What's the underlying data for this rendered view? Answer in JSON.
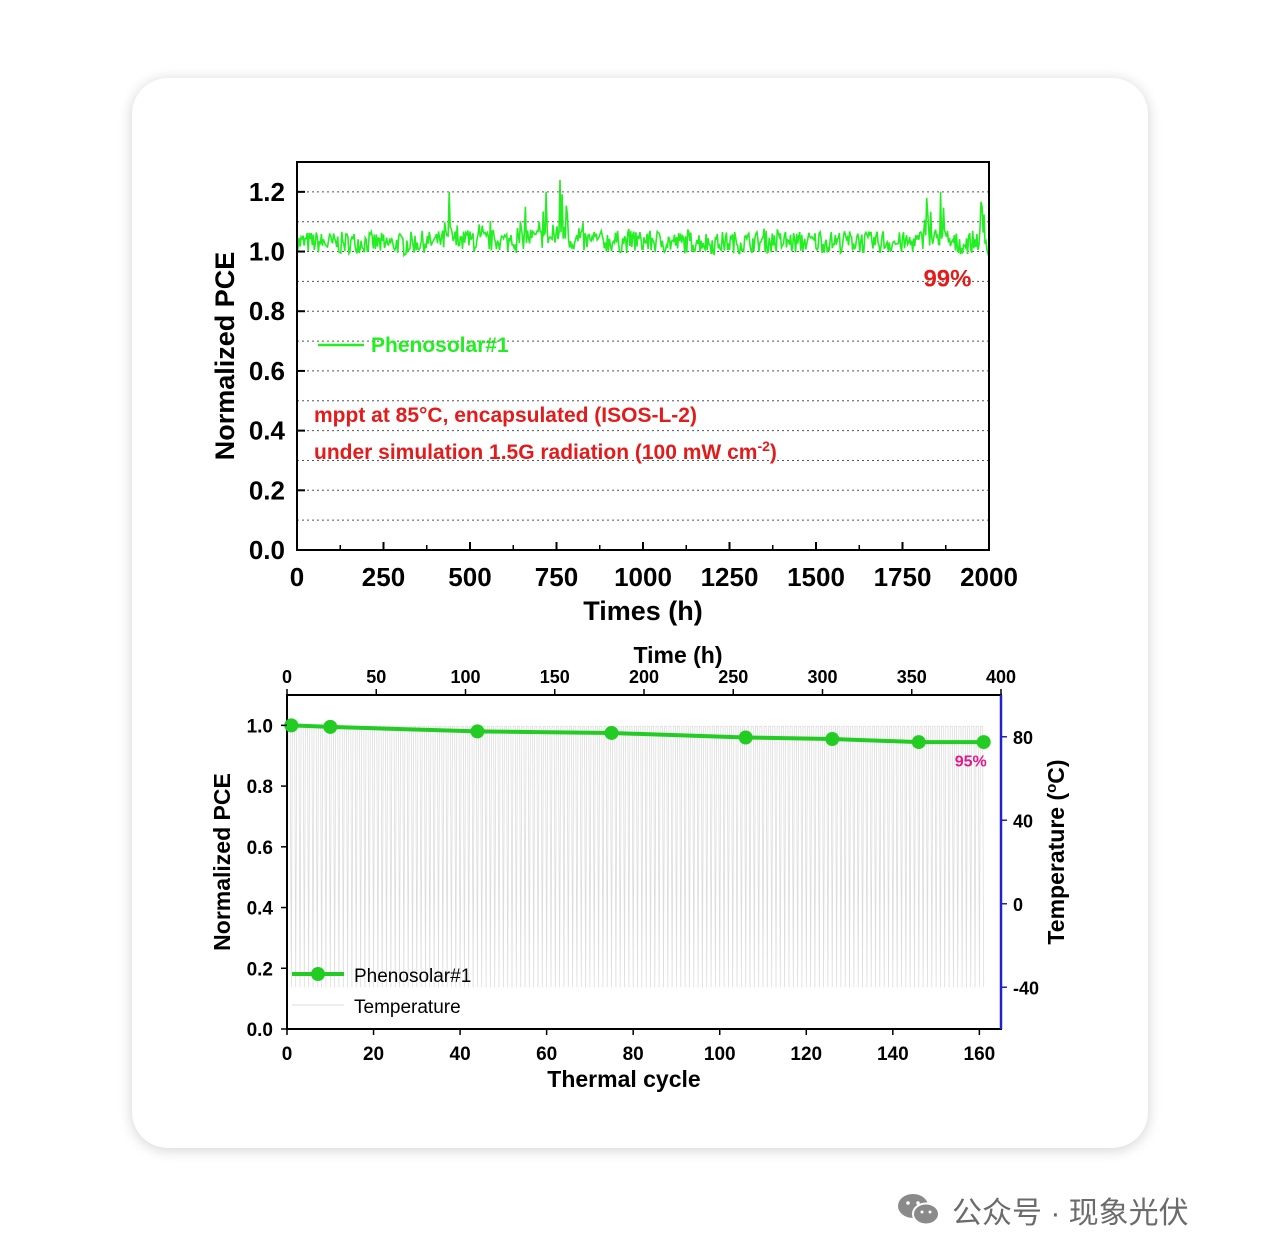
{
  "chart_data": [
    {
      "type": "line",
      "xlabel": "Times (h)",
      "ylabel": "Normalized PCE",
      "xlim": [
        0,
        2000
      ],
      "ylim": [
        0,
        1.3
      ],
      "xticks": [
        0,
        250,
        500,
        750,
        1000,
        1250,
        1500,
        1750,
        2000
      ],
      "yticks": [
        0.0,
        0.2,
        0.4,
        0.6,
        0.8,
        1.0,
        1.2
      ],
      "ytick_labels": [
        "0.0",
        "0.2",
        "0.4",
        "0.6",
        "0.8",
        "1.0",
        "1.2"
      ],
      "grid": "dotted horizontal lines every 0.1",
      "legend_placement": "middle-left",
      "series": [
        {
          "name": "Phenosolar#1",
          "color": "#22ee22",
          "x": [
            0,
            50,
            100,
            150,
            200,
            250,
            300,
            350,
            400,
            430,
            440,
            460,
            500,
            550,
            600,
            640,
            660,
            700,
            720,
            740,
            760,
            800,
            850,
            900,
            950,
            1000,
            1050,
            1100,
            1150,
            1200,
            1250,
            1300,
            1350,
            1400,
            1450,
            1500,
            1550,
            1600,
            1650,
            1700,
            1750,
            1800,
            1820,
            1840,
            1860,
            1880,
            1900,
            1950,
            1980,
            2000
          ],
          "y": [
            1.02,
            1.04,
            1.01,
            1.03,
            1.04,
            1.0,
            1.02,
            1.03,
            1.04,
            1.08,
            1.2,
            1.06,
            1.05,
            1.07,
            1.06,
            1.05,
            1.15,
            1.1,
            1.2,
            1.09,
            1.24,
            1.07,
            1.05,
            1.06,
            1.04,
            1.05,
            1.04,
            1.03,
            1.05,
            1.02,
            1.04,
            1.03,
            1.05,
            1.04,
            1.03,
            1.05,
            1.04,
            1.06,
            1.03,
            1.04,
            1.02,
            1.05,
            1.18,
            1.08,
            1.2,
            1.04,
            1.0,
            1.03,
            1.15,
            1.0
          ]
        }
      ],
      "annotations": [
        {
          "text": "99%",
          "color": "#e31b1b",
          "x": 1880,
          "y": 0.91
        }
      ],
      "notes": {
        "line1": "mppt at 85°C, encapsulated (ISOS-L-2)",
        "line2_main": "under simulation 1.5G radiation (100 mW cm",
        "line2_sup": "-2",
        "line2_end": ")",
        "color": "#e31b1b"
      }
    },
    {
      "type": "line",
      "xlabel": "Thermal cycle",
      "ylabel": "Normalized PCE",
      "x2label": "Time (h)",
      "y2label": "Temperature (°C)",
      "y2label_main": "Temperature (",
      "y2label_sup": "o",
      "y2label_end": "C)",
      "xlim": [
        0,
        165
      ],
      "ylim": [
        0,
        1.1
      ],
      "x2lim": [
        0,
        400
      ],
      "y2lim": [
        -60,
        100
      ],
      "xticks": [
        0,
        20,
        40,
        60,
        80,
        100,
        120,
        140,
        160
      ],
      "yticks": [
        0.0,
        0.2,
        0.4,
        0.6,
        0.8,
        1.0
      ],
      "ytick_labels": [
        "0.0",
        "0.2",
        "0.4",
        "0.6",
        "0.8",
        "1.0"
      ],
      "x2ticks": [
        0,
        50,
        100,
        150,
        200,
        250,
        300,
        350,
        400
      ],
      "y2ticks": [
        -40,
        0,
        40,
        80
      ],
      "y2_axis_color": "#2222cc",
      "legend_placement": "bottom-left",
      "series": [
        {
          "name": "Phenosolar#1",
          "color": "#22cc22",
          "x": [
            1,
            10,
            44,
            75,
            106,
            126,
            146,
            161
          ],
          "y": [
            1.0,
            0.995,
            0.98,
            0.975,
            0.96,
            0.955,
            0.945,
            0.945
          ]
        },
        {
          "name": "Temperature",
          "color": "#dddddd",
          "cycles": 161,
          "range_c": [
            -40,
            85
          ]
        }
      ],
      "annotations": [
        {
          "text": "95%",
          "color": "#e0198c",
          "x": 158,
          "y": 0.885
        }
      ]
    }
  ],
  "footer": {
    "icon": "wechat-icon",
    "text": "公众号 · 现象光伏"
  }
}
